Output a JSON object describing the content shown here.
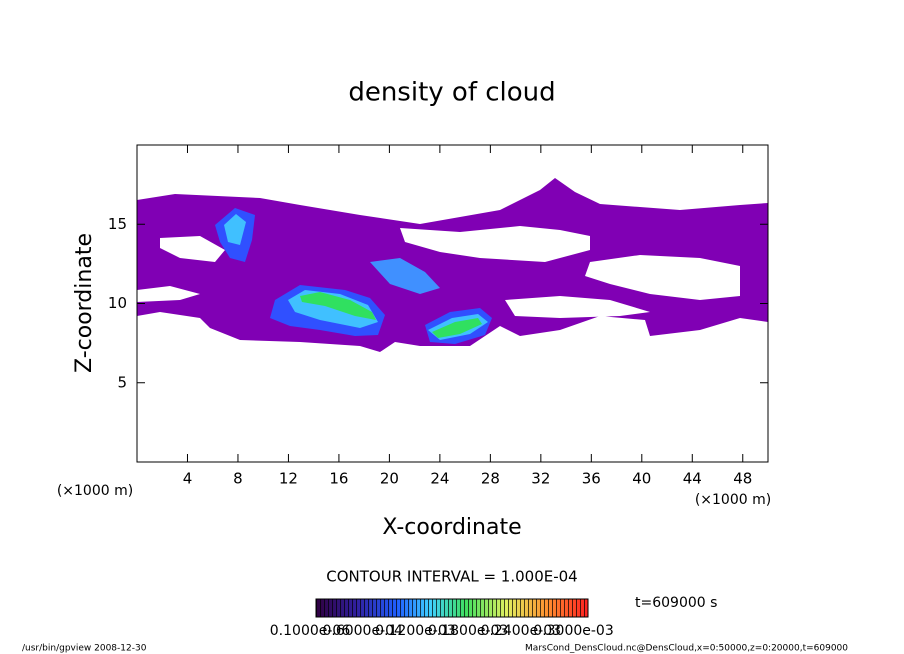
{
  "chart_data": {
    "type": "contour",
    "title": "density of cloud",
    "x_label": "X-coordinate",
    "y_label": "Z-coordinate",
    "x_unit": "(×1000 m)",
    "y_unit": "(×1000 m)",
    "xlim": [
      0,
      50
    ],
    "xticks": [
      4,
      8,
      12,
      16,
      20,
      24,
      28,
      32,
      36,
      40,
      44,
      48
    ],
    "ylim": [
      0,
      20
    ],
    "yticks": [
      5,
      10,
      15
    ],
    "contour_interval": "CONTOUR INTERVAL = 1.000E-04",
    "time_label": "t=609000 s",
    "colorbar": {
      "labels": [
        "0.1000e-06",
        "0.6000e-04",
        "0.1200e-03",
        "0.1800e-03",
        "0.2400e-03",
        "0.3000e-03"
      ]
    },
    "footer_left": "/usr/bin/gpview  2008-12-30",
    "footer_right": "MarsCond_DensCloud.nc@DensCloud,x=0:50000,z=0:20000,t=609000"
  }
}
